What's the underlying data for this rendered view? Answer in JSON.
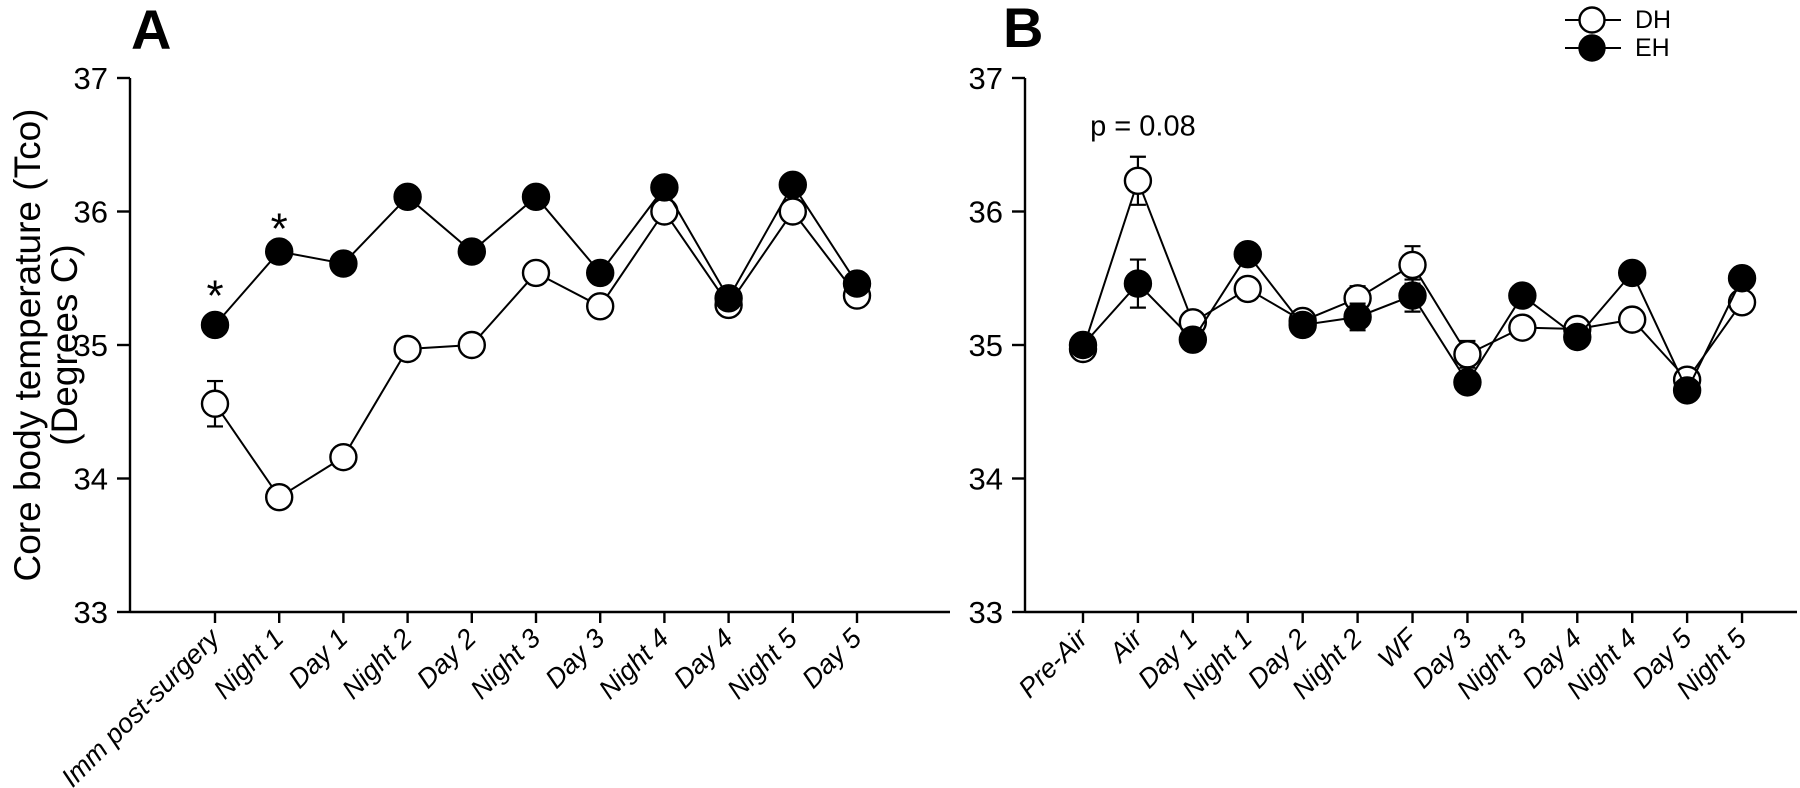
{
  "figure": {
    "background_color": "#ffffff",
    "line_color": "#000000",
    "y_axis_label_line1": "Core body temperature (Tco)",
    "y_axis_label_line2": "(Degrees C)",
    "legend": [
      {
        "label": "DH",
        "marker": "open-circle"
      },
      {
        "label": "EH",
        "marker": "filled-circle"
      }
    ]
  },
  "chart_data": [
    {
      "panel_label": "A",
      "type": "line",
      "ylabel": "Core body temperature (Tco) (Degrees C)",
      "ylim": [
        33,
        37
      ],
      "yticks": [
        33,
        34,
        35,
        36,
        37
      ],
      "grid": false,
      "legend_position": "top-right-of-figure",
      "categories": [
        "Imm post-surgery",
        "Night 1",
        "Day 1",
        "Night 2",
        "Day 2",
        "Night 3",
        "Day 3",
        "Night 4",
        "Day 4",
        "Night 5",
        "Day 5"
      ],
      "series": [
        {
          "name": "DH",
          "marker": "open-circle",
          "values": [
            34.56,
            33.86,
            34.16,
            34.97,
            35.0,
            35.54,
            35.29,
            36.0,
            35.3,
            36.0,
            35.37
          ],
          "errors": [
            0.17,
            null,
            null,
            null,
            null,
            null,
            null,
            null,
            null,
            null,
            null
          ]
        },
        {
          "name": "EH",
          "marker": "filled-circle",
          "values": [
            35.15,
            35.7,
            35.61,
            36.11,
            35.7,
            36.11,
            35.54,
            36.18,
            35.35,
            36.2,
            35.46
          ],
          "errors": [
            null,
            null,
            null,
            null,
            null,
            null,
            null,
            null,
            null,
            null,
            null
          ]
        }
      ],
      "annotations": [
        {
          "text": "*",
          "category_index": 0,
          "y": 35.26,
          "kind": "significance"
        },
        {
          "text": "*",
          "category_index": 1,
          "y": 35.76,
          "kind": "significance"
        }
      ]
    },
    {
      "panel_label": "B",
      "type": "line",
      "ylabel": "",
      "ylim": [
        33,
        37
      ],
      "yticks": [
        33,
        34,
        35,
        36,
        37
      ],
      "grid": false,
      "categories": [
        "Pre-Air",
        "Air",
        "Day 1",
        "Night 1",
        "Day 2",
        "Night 2",
        "WF",
        "Day 3",
        "Night 3",
        "Day 4",
        "Night 4",
        "Day 5",
        "Night 5"
      ],
      "series": [
        {
          "name": "DH",
          "marker": "open-circle",
          "values": [
            34.97,
            36.23,
            35.17,
            35.42,
            35.18,
            35.35,
            35.6,
            34.93,
            35.13,
            35.12,
            35.19,
            34.74,
            35.32
          ],
          "errors": [
            0.05,
            0.18,
            null,
            0.06,
            null,
            0.09,
            0.14,
            0.1,
            null,
            0.07,
            null,
            null,
            null
          ]
        },
        {
          "name": "EH",
          "marker": "filled-circle",
          "values": [
            35.0,
            35.46,
            35.04,
            35.68,
            35.15,
            35.21,
            35.37,
            34.72,
            35.37,
            35.06,
            35.54,
            34.66,
            35.5
          ],
          "errors": [
            null,
            0.18,
            null,
            null,
            null,
            0.1,
            0.12,
            null,
            null,
            null,
            null,
            null,
            null
          ]
        }
      ],
      "annotations": [
        {
          "text": "p = 0.08",
          "category_index": 1,
          "y": 36.57,
          "kind": "p-value"
        }
      ]
    }
  ]
}
